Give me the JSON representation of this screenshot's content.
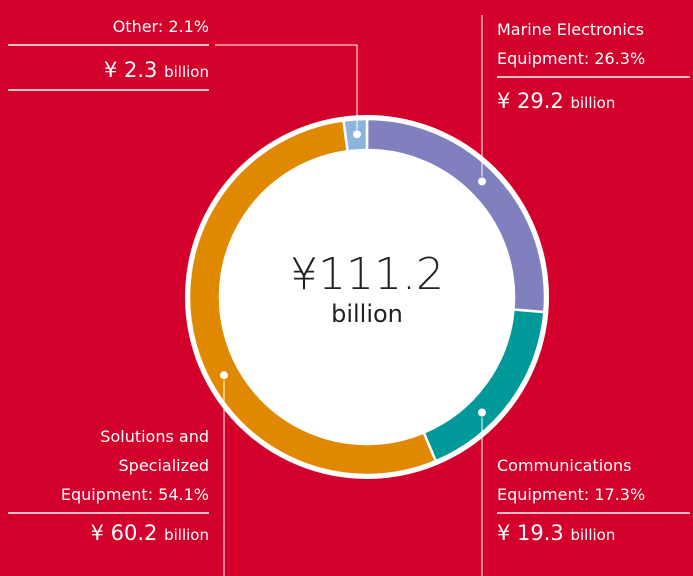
{
  "chart_data": {
    "type": "donut",
    "categories": [
      "Marine Electronics Equipment",
      "Communications Equipment",
      "Solutions and Specialized Equipment",
      "Other"
    ],
    "values": [
      26.3,
      17.3,
      54.1,
      2.1
    ],
    "value_labels": [
      "26.3%",
      "17.3%",
      "54.1%",
      "2.1%"
    ],
    "amounts": [
      29.2,
      19.3,
      60.2,
      2.3
    ],
    "amount_labels": [
      "¥ 29.2",
      "¥ 19.3",
      "¥ 60.2",
      "¥ 2.3"
    ],
    "unit": "billion",
    "total": 111.2,
    "total_label": "¥111.2",
    "colors": [
      "#7f80bd",
      "#00999a",
      "#e08900",
      "#8db4dc"
    ]
  }
}
